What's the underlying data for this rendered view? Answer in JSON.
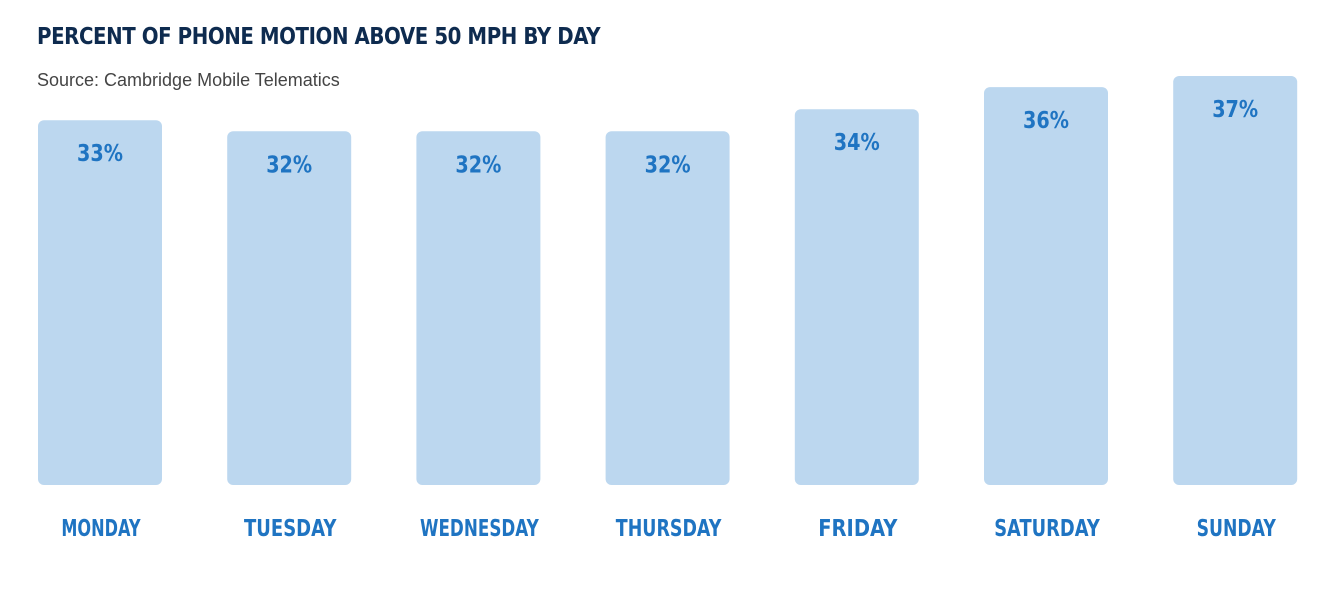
{
  "chart_data": {
    "type": "bar",
    "title": "PERCENT OF PHONE MOTION ABOVE 50 MPH BY DAY",
    "subtitle": "Source: Cambridge Mobile Telematics",
    "categories": [
      "MONDAY",
      "TUESDAY",
      "WEDNESDAY",
      "THURSDAY",
      "FRIDAY",
      "SATURDAY",
      "SUNDAY"
    ],
    "values": [
      33,
      32,
      32,
      32,
      34,
      36,
      37
    ],
    "value_labels": [
      "33%",
      "32%",
      "32%",
      "32%",
      "34%",
      "36%",
      "37%"
    ],
    "ylim": [
      0,
      37
    ],
    "grid": false,
    "legend": "none",
    "colors": {
      "bar": "#bcd7ef",
      "label": "#1f74c2",
      "title": "#0e2b4f",
      "subtitle": "#444444"
    }
  }
}
